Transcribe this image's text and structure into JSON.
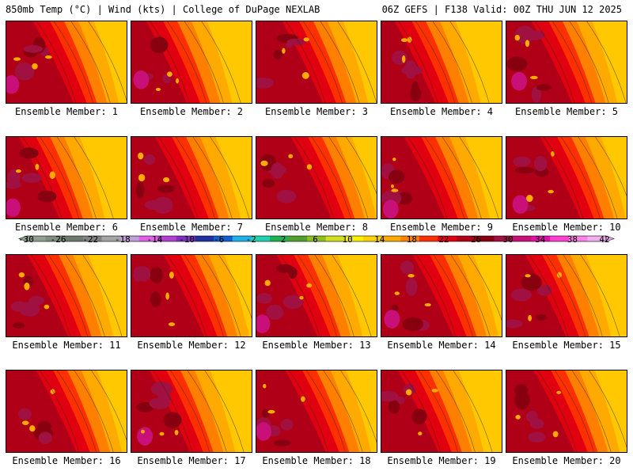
{
  "header": {
    "left": "850mb Temp (°C) | Wind (kts) | College of DuPage NEXLAB",
    "right": "06Z GEFS | F138 Valid: 00Z THU JUN 12 2025"
  },
  "members": [
    {
      "label": "Ensemble Member: 1"
    },
    {
      "label": "Ensemble Member: 2"
    },
    {
      "label": "Ensemble Member: 3"
    },
    {
      "label": "Ensemble Member: 4"
    },
    {
      "label": "Ensemble Member: 5"
    },
    {
      "label": "Ensemble Member: 6"
    },
    {
      "label": "Ensemble Member: 7"
    },
    {
      "label": "Ensemble Member: 8"
    },
    {
      "label": "Ensemble Member: 9"
    },
    {
      "label": "Ensemble Member: 10"
    },
    {
      "label": "Ensemble Member: 11"
    },
    {
      "label": "Ensemble Member: 12"
    },
    {
      "label": "Ensemble Member: 13"
    },
    {
      "label": "Ensemble Member: 14"
    },
    {
      "label": "Ensemble Member: 15"
    },
    {
      "label": "Ensemble Member: 16"
    },
    {
      "label": "Ensemble Member: 17"
    },
    {
      "label": "Ensemble Member: 18"
    },
    {
      "label": "Ensemble Member: 19"
    },
    {
      "label": "Ensemble Member: 20"
    }
  ],
  "colorbar": {
    "labels": [
      "-30",
      "-26",
      "-22",
      "-18",
      "-14",
      "-10",
      "-6",
      "-2",
      "2",
      "6",
      "10",
      "14",
      "18",
      "22",
      "26",
      "30",
      "34",
      "38",
      "42"
    ],
    "colors": [
      "#8fa090",
      "#7d8d7e",
      "#6b7a6c",
      "#828282",
      "#a4a4a4",
      "#c0a0d8",
      "#e060e8",
      "#b040d0",
      "#8030c0",
      "#2030a0",
      "#1060d0",
      "#20b0e8",
      "#20d0b0",
      "#20b050",
      "#50a030",
      "#90c020",
      "#d0e020",
      "#f8f000",
      "#ffd200",
      "#ffaa00",
      "#ff8000",
      "#ff3000",
      "#e00010",
      "#b00018",
      "#880010",
      "#a01040",
      "#c81078",
      "#e010a8",
      "#ff40d0",
      "#ff80e8",
      "#f0b0f0"
    ]
  }
}
